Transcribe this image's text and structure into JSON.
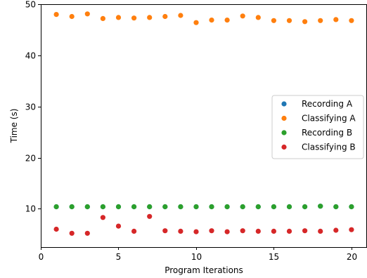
{
  "chart_data": {
    "type": "scatter",
    "title": "",
    "xlabel": "Program Iterations",
    "ylabel": "Time (s)",
    "xlim": [
      0,
      21
    ],
    "ylim": [
      2.5,
      50
    ],
    "xticks": [
      0,
      5,
      10,
      15,
      20
    ],
    "yticks": [
      10,
      20,
      30,
      40,
      50
    ],
    "grid": false,
    "legend_position": "center-right",
    "x": [
      1,
      2,
      3,
      4,
      5,
      6,
      7,
      8,
      9,
      10,
      11,
      12,
      13,
      14,
      15,
      16,
      17,
      18,
      19,
      20
    ],
    "series": [
      {
        "name": "Recording A",
        "color": "#1f77b4",
        "values": [
          10.4,
          10.4,
          10.4,
          10.4,
          10.4,
          10.4,
          10.4,
          10.4,
          10.4,
          10.4,
          10.4,
          10.4,
          10.4,
          10.4,
          10.4,
          10.4,
          10.4,
          10.5,
          10.4,
          10.4
        ]
      },
      {
        "name": "Classifying A",
        "color": "#ff7f0e",
        "values": [
          48.0,
          47.6,
          48.1,
          47.2,
          47.4,
          47.3,
          47.4,
          47.6,
          47.8,
          46.4,
          46.9,
          46.9,
          47.7,
          47.4,
          46.8,
          46.8,
          46.6,
          46.8,
          47.0,
          46.8
        ]
      },
      {
        "name": "Recording B",
        "color": "#2ca02c",
        "values": [
          10.4,
          10.4,
          10.4,
          10.4,
          10.4,
          10.4,
          10.4,
          10.4,
          10.4,
          10.4,
          10.4,
          10.4,
          10.4,
          10.4,
          10.4,
          10.4,
          10.4,
          10.5,
          10.4,
          10.4
        ]
      },
      {
        "name": "Classifying B",
        "color": "#d62728",
        "values": [
          6.0,
          5.2,
          5.2,
          8.3,
          6.6,
          5.6,
          8.5,
          5.7,
          5.6,
          5.5,
          5.7,
          5.5,
          5.7,
          5.6,
          5.6,
          5.6,
          5.7,
          5.6,
          5.8,
          5.9
        ]
      }
    ]
  }
}
